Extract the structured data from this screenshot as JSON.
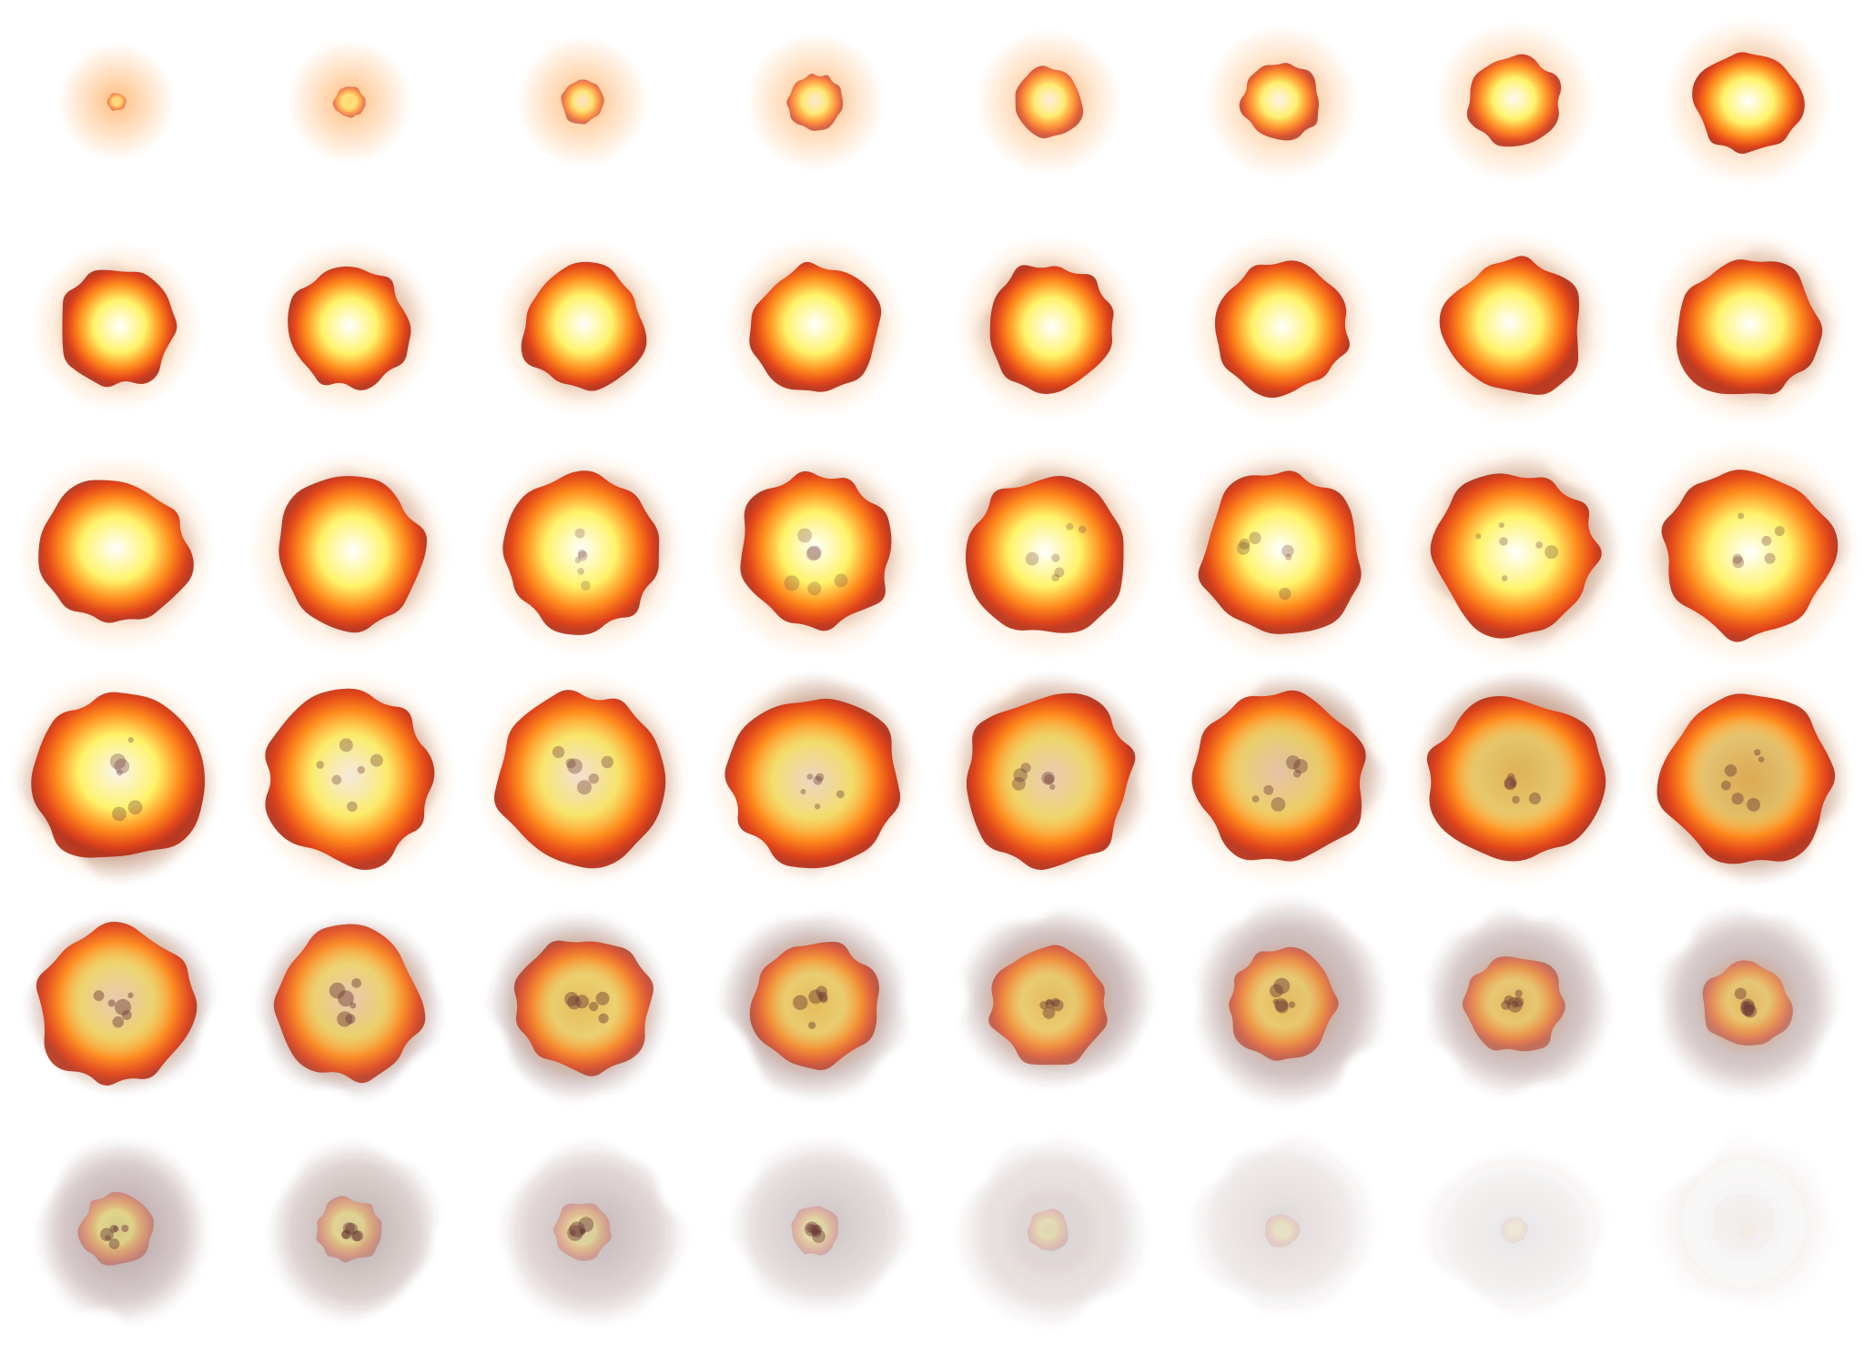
{
  "sprite_sheet": {
    "background": "#ffffff",
    "columns": 8,
    "rows": 6,
    "frame_count": 48,
    "palette": {
      "white_core": "#ffffff",
      "yellow": "#fff36a",
      "orange": "#ff8a1c",
      "red_orange": "#e2461a",
      "ember_red": "#b42a12",
      "smoke": "#6b3a36",
      "soot": "#4a2a2c"
    },
    "phases": [
      {
        "name": "ignition",
        "frames": [
          0,
          7
        ]
      },
      {
        "name": "fireball",
        "frames": [
          8,
          23
        ]
      },
      {
        "name": "burning",
        "frames": [
          24,
          31
        ]
      },
      {
        "name": "embers",
        "frames": [
          32,
          39
        ]
      },
      {
        "name": "dissipating_smoke",
        "frames": [
          40,
          47
        ]
      }
    ]
  }
}
